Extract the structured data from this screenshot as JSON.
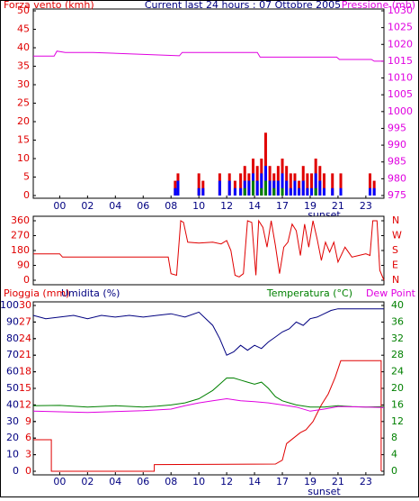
{
  "chart_data": [
    {
      "type": "bar",
      "title": "Current last 24 hours : 07 Ottobre 2005",
      "ylabel": "Forza vento (kmh)",
      "y2label": "Pressione (mb)",
      "xlim": [
        -1.9,
        23.3
      ],
      "xticks": [
        {
          "value": 0,
          "label": "00"
        },
        {
          "value": 2,
          "label": "02"
        },
        {
          "value": 4,
          "label": "04"
        },
        {
          "value": 6,
          "label": "06"
        },
        {
          "value": 8,
          "label": "08"
        },
        10,
        12,
        14,
        {
          "value": 16,
          "label": "17"
        },
        {
          "value": 18,
          "label": "19"
        },
        {
          "value": 20,
          "label": "21"
        },
        {
          "value": 22,
          "label": "23"
        }
      ],
      "ylim": [
        0,
        50
      ],
      "yticks": [
        0,
        5,
        10,
        15,
        20,
        25,
        30,
        35,
        40,
        45,
        50
      ],
      "y2lim": [
        975,
        1030
      ],
      "y2ticks": [
        975,
        980,
        985,
        990,
        995,
        1000,
        1005,
        1010,
        1015,
        1020,
        1025,
        1030
      ],
      "annotations": [
        {
          "text": "sunset",
          "x": 19.0
        }
      ],
      "series": [
        {
          "color": "#e00000",
          "x": [
            8.3,
            8.5,
            10.0,
            10.3,
            11.5,
            12.2,
            12.6,
            13.0,
            13.3,
            13.6,
            13.9,
            14.2,
            14.5,
            14.8,
            15.1,
            15.4,
            15.7,
            16.0,
            16.3,
            16.6,
            16.9,
            17.2,
            17.5,
            17.8,
            18.1,
            18.4,
            18.7,
            19.0,
            19.6,
            20.2,
            22.3,
            22.6
          ],
          "values": [
            4,
            6,
            6,
            4,
            6,
            6,
            4,
            6,
            8,
            6,
            10,
            8,
            10,
            17,
            8,
            6,
            8,
            10,
            8,
            6,
            6,
            4,
            8,
            6,
            6,
            10,
            8,
            6,
            6,
            6,
            6,
            4
          ]
        },
        {
          "color": "#0000ff",
          "x": [
            8.3,
            8.5,
            10.0,
            10.3,
            11.5,
            12.2,
            12.6,
            13.0,
            13.3,
            13.6,
            13.9,
            14.2,
            14.5,
            14.8,
            15.1,
            15.4,
            15.7,
            16.0,
            16.3,
            16.6,
            16.9,
            17.2,
            17.5,
            17.8,
            18.1,
            18.4,
            18.7,
            19.0,
            19.6,
            20.2,
            22.3,
            22.6
          ],
          "values": [
            2,
            4,
            2,
            2,
            4,
            4,
            2,
            2,
            4,
            4,
            6,
            4,
            6,
            8,
            4,
            4,
            4,
            6,
            4,
            2,
            4,
            2,
            4,
            2,
            2,
            6,
            4,
            2,
            2,
            2,
            2,
            2
          ]
        },
        {
          "color": "#008000",
          "x": [
            13.3,
            13.9,
            14.5,
            14.8,
            15.4,
            16.0,
            18.4
          ],
          "values": [
            2,
            4,
            2,
            4,
            2,
            2,
            2
          ]
        },
        {
          "color": "#e000e0",
          "axis": "y2",
          "type": "line",
          "x": [
            -1.9,
            -0.4,
            -0.2,
            0.4,
            2.4,
            8.6,
            8.8,
            9.2,
            14.2,
            14.4,
            18.5,
            19.9,
            20.1,
            22.4,
            22.6,
            23.3
          ],
          "values": [
            1016.5,
            1016.5,
            1018,
            1017.6,
            1017.6,
            1016.6,
            1017.6,
            1017.6,
            1017.6,
            1016.2,
            1016.2,
            1016.2,
            1015.5,
            1015.5,
            1015,
            1015
          ]
        }
      ]
    },
    {
      "type": "line",
      "xlim": [
        -1.9,
        23.3
      ],
      "ylim": [
        0,
        360
      ],
      "yticks": [
        0,
        90,
        180,
        270,
        360
      ],
      "y2lim": [
        0,
        360
      ],
      "y2ticks": [
        {
          "value": 0,
          "label": "N"
        },
        {
          "value": 90,
          "label": "E"
        },
        {
          "value": 180,
          "label": "S"
        },
        {
          "value": 270,
          "label": "W"
        },
        {
          "value": 360,
          "label": "N"
        }
      ],
      "series": [
        {
          "color": "#e00000",
          "x": [
            -1.9,
            0,
            0.2,
            7.8,
            8.0,
            8.4,
            8.7,
            8.9,
            9.2,
            10,
            11,
            11.6,
            12,
            12.3,
            12.6,
            12.9,
            13.2,
            13.5,
            13.8,
            14.1,
            14.3,
            14.6,
            14.9,
            15.2,
            15.5,
            15.8,
            16.1,
            16.4,
            16.7,
            17,
            17.3,
            17.6,
            17.9,
            18.2,
            18.5,
            18.8,
            19.1,
            19.4,
            19.7,
            20,
            20.5,
            21,
            21.5,
            22,
            22.3,
            22.5,
            22.8,
            23,
            23.3
          ],
          "values": [
            160,
            160,
            140,
            140,
            40,
            30,
            360,
            350,
            230,
            225,
            230,
            220,
            240,
            180,
            30,
            20,
            40,
            360,
            350,
            30,
            360,
            320,
            200,
            360,
            210,
            40,
            200,
            230,
            340,
            300,
            150,
            340,
            200,
            360,
            250,
            120,
            230,
            170,
            230,
            110,
            200,
            140,
            150,
            160,
            150,
            360,
            360,
            60,
            0
          ]
        }
      ]
    },
    {
      "type": "line",
      "xlim": [
        -1.9,
        23.3
      ],
      "xticks": [
        {
          "value": 0,
          "label": "00"
        },
        {
          "value": 2,
          "label": "02"
        },
        {
          "value": 4,
          "label": "04"
        },
        {
          "value": 6,
          "label": "06"
        },
        {
          "value": 8,
          "label": "08"
        },
        10,
        12,
        14,
        {
          "value": 16,
          "label": "17"
        },
        {
          "value": 18,
          "label": "19"
        },
        {
          "value": 20,
          "label": "21"
        },
        {
          "value": 22,
          "label": "23"
        }
      ],
      "ylim": [
        0,
        100
      ],
      "yticks": [
        0,
        10,
        20,
        30,
        40,
        50,
        60,
        70,
        80,
        90,
        100
      ],
      "y3lim": [
        0,
        30
      ],
      "y3ticks": [
        0,
        3,
        6,
        9,
        12,
        15,
        18,
        21,
        24,
        27,
        30
      ],
      "y2lim": [
        0,
        40
      ],
      "y2ticks": [
        0,
        4,
        8,
        12,
        16,
        20,
        24,
        28,
        32,
        36,
        40
      ],
      "annotations": [
        {
          "text": "sunset",
          "x": 19.0
        }
      ],
      "series": [
        {
          "name": "Umidita (%)",
          "color": "#000080",
          "axis": "y",
          "x": [
            -1.9,
            -1,
            0,
            1,
            2,
            3,
            4,
            5,
            6,
            7,
            8,
            9,
            10,
            10.5,
            11,
            11.5,
            12,
            12.5,
            13,
            13.5,
            14,
            14.5,
            15,
            15.5,
            16,
            16.5,
            17,
            17.5,
            18,
            18.5,
            19,
            19.5,
            20,
            21,
            22,
            23.3
          ],
          "values": [
            94,
            92,
            93,
            94,
            92,
            94,
            93,
            94,
            93,
            94,
            95,
            93,
            96,
            92,
            88,
            80,
            70,
            72,
            76,
            73,
            76,
            74,
            78,
            81,
            84,
            86,
            90,
            88,
            92,
            93,
            95,
            97,
            98,
            98,
            98,
            98
          ]
        },
        {
          "name": "Pioggia (mm)",
          "color": "#e00000",
          "axis": "y3",
          "x": [
            -1.9,
            -0.6,
            -0.6,
            6.8,
            6.8,
            15.5,
            16,
            16.3,
            16.8,
            17.3,
            17.7,
            18.2,
            18.8,
            19.3,
            19.8,
            20.2,
            22.5,
            23.1,
            23.1
          ],
          "values": [
            5.7,
            5.7,
            0,
            0,
            1.2,
            1.3,
            2,
            5,
            6,
            7,
            7.5,
            9,
            12,
            14,
            17,
            20,
            20,
            20,
            0
          ]
        },
        {
          "name": "Temperatura (°C)",
          "color": "#008000",
          "axis": "y2",
          "x": [
            -1.9,
            0,
            2,
            4,
            6,
            7,
            8,
            9,
            10,
            10.5,
            11,
            11.5,
            12,
            12.5,
            13,
            13.5,
            14,
            14.5,
            15,
            15.5,
            16,
            16.5,
            17,
            18,
            19,
            20,
            21,
            22,
            23.3
          ],
          "values": [
            15.8,
            15.9,
            15.5,
            15.8,
            15.5,
            15.7,
            16,
            16.5,
            17.5,
            18.5,
            19.5,
            21,
            22.5,
            22.5,
            22,
            21.5,
            21,
            21.5,
            20,
            18,
            17,
            16.5,
            16,
            15.5,
            15.5,
            15.8,
            15.6,
            15.5,
            15.6
          ]
        },
        {
          "name": "Dew Point",
          "color": "#e000e0",
          "axis": "y2",
          "x": [
            -1.9,
            2,
            6,
            8,
            9,
            10,
            11,
            12,
            13,
            14,
            15,
            16,
            17,
            18,
            19,
            20,
            22,
            23.3
          ],
          "values": [
            14.5,
            14.2,
            14.6,
            15,
            15.8,
            16.5,
            17,
            17.5,
            17,
            16.8,
            16.5,
            16,
            15.5,
            14.5,
            15,
            15.6,
            15.5,
            15.4
          ]
        }
      ]
    }
  ]
}
